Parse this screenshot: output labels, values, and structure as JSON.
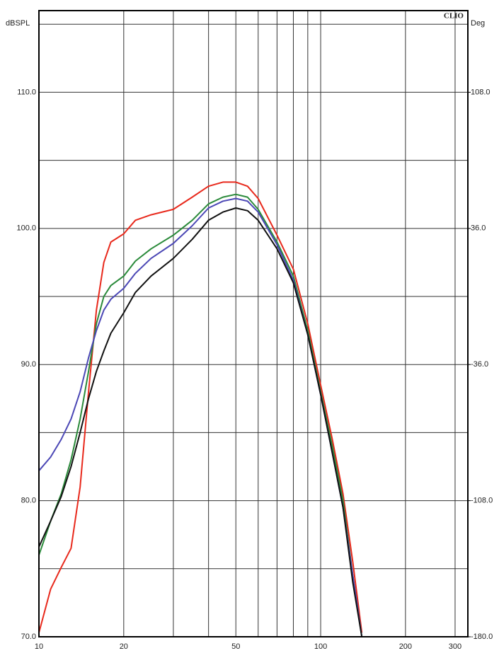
{
  "chart_data": {
    "type": "line",
    "brand": "CLIO",
    "ylabel": "dBSPL",
    "y2label": "Deg",
    "log_x": true,
    "grid": true,
    "xlim": [
      10,
      333
    ],
    "xticks": [
      10,
      20,
      50,
      100,
      200,
      300
    ],
    "x_grid_lines": [
      30,
      40,
      60,
      70,
      80,
      90
    ],
    "ylim": [
      70,
      116
    ],
    "yticks": [
      {
        "value": 70,
        "label": "70.0"
      },
      {
        "value": 80,
        "label": "80.0"
      },
      {
        "value": 90,
        "label": "90.0"
      },
      {
        "value": 100,
        "label": "100.0"
      },
      {
        "value": 110,
        "label": "110.0"
      }
    ],
    "y_grid_lines": [
      75,
      85,
      95,
      105,
      115
    ],
    "y2lim": [
      -180,
      151.2
    ],
    "y2ticks": [
      {
        "value": -180,
        "label": "-180.0"
      },
      {
        "value": -108,
        "label": "-108.0"
      },
      {
        "value": -36,
        "label": "-36.0"
      },
      {
        "value": 36,
        "label": "36.0"
      },
      {
        "value": 108,
        "label": "108.0"
      }
    ],
    "x": [
      10,
      11,
      12,
      13,
      14,
      15,
      16,
      17,
      18,
      20,
      22,
      25,
      30,
      35,
      40,
      45,
      50,
      55,
      60,
      70,
      80,
      90,
      100,
      110,
      120,
      130,
      140
    ],
    "series": [
      {
        "color": "#e8291c",
        "values": [
          70.3,
          73.5,
          75.1,
          76.5,
          81,
          88,
          94,
          97.5,
          99,
          99.6,
          100.6,
          101,
          101.4,
          102.3,
          103.1,
          103.4,
          103.4,
          103.1,
          102.2,
          99.5,
          97,
          93,
          88.5,
          84.5,
          80.5,
          75.5,
          70.3
        ]
      },
      {
        "color": "#2a8a3a",
        "values": [
          76,
          78.5,
          80.5,
          83,
          86,
          89.5,
          93,
          95,
          95.8,
          96.5,
          97.6,
          98.5,
          99.5,
          100.6,
          101.8,
          102.3,
          102.5,
          102.3,
          101.4,
          99,
          96.5,
          92.5,
          88,
          84,
          80,
          74.5,
          70
        ]
      },
      {
        "color": "#4b47b5",
        "values": [
          82.2,
          83.2,
          84.5,
          86,
          88,
          90.5,
          92.5,
          94,
          94.8,
          95.6,
          96.7,
          97.8,
          98.9,
          100.2,
          101.5,
          102,
          102.2,
          102,
          101.2,
          98.8,
          96.2,
          92.2,
          87.8,
          83.5,
          79.5,
          74.5,
          70
        ]
      },
      {
        "color": "#111111",
        "values": [
          76.6,
          78.5,
          80.3,
          82.5,
          85,
          87.5,
          89.5,
          91,
          92.3,
          93.8,
          95.3,
          96.5,
          97.8,
          99.2,
          100.6,
          101.2,
          101.5,
          101.3,
          100.6,
          98.5,
          96,
          92.2,
          87.8,
          83.5,
          79.5,
          74,
          70
        ]
      }
    ]
  }
}
